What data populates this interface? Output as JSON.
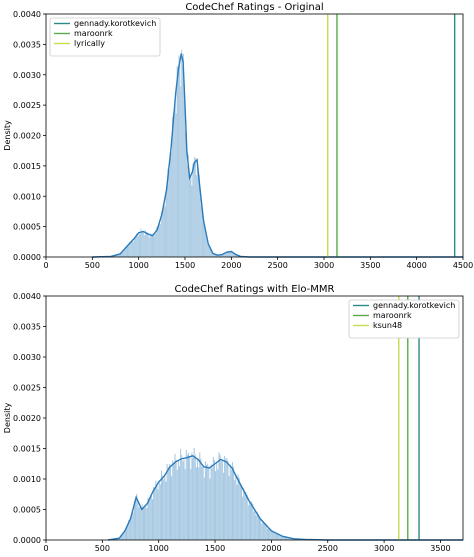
{
  "chart_data": [
    {
      "type": "area",
      "title": "CodeChef Ratings - Original",
      "xlabel": "",
      "ylabel": "Density",
      "xlim": [
        0,
        4500
      ],
      "ylim": [
        0,
        0.004
      ],
      "xticks": [
        0,
        500,
        1000,
        1500,
        2000,
        2500,
        3000,
        3500,
        4000,
        4500
      ],
      "yticks": [
        0.0,
        0.0005,
        0.001,
        0.0015,
        0.002,
        0.0025,
        0.003,
        0.0035,
        0.004
      ],
      "ytick_labels": [
        "0.0000",
        "0.0005",
        "0.0010",
        "0.0015",
        "0.0020",
        "0.0025",
        "0.0030",
        "0.0035",
        "0.0040"
      ],
      "legend_position": "top-left",
      "colors": {
        "hist": "#a6c8e2",
        "kde": "#2b7bba"
      },
      "density_curve": {
        "x": [
          500,
          700,
          800,
          900,
          950,
          1000,
          1050,
          1100,
          1150,
          1200,
          1250,
          1300,
          1350,
          1400,
          1430,
          1460,
          1480,
          1500,
          1520,
          1550,
          1580,
          1600,
          1630,
          1660,
          1700,
          1750,
          1800,
          1850,
          1900,
          1950,
          2000,
          2050,
          2100,
          2200,
          2400,
          2600,
          3000,
          3500,
          4000,
          4500
        ],
        "y": [
          0,
          1e-05,
          5e-05,
          0.00022,
          0.0003,
          0.0004,
          0.00042,
          0.00038,
          0.00035,
          0.00045,
          0.0007,
          0.0011,
          0.0018,
          0.0027,
          0.0031,
          0.00335,
          0.0032,
          0.0025,
          0.00175,
          0.0013,
          0.0014,
          0.00155,
          0.0016,
          0.00115,
          0.0006,
          0.00022,
          6e-05,
          3e-05,
          4e-05,
          8e-05,
          9e-05,
          4e-05,
          1e-05,
          0,
          0,
          0,
          0,
          0,
          0,
          0
        ]
      },
      "series": [
        {
          "name": "gennady.korotkevich",
          "x": 4410,
          "color": "#2a8a8a"
        },
        {
          "name": "maroonrk",
          "x": 3140,
          "color": "#5aaa4a"
        },
        {
          "name": "lyrically",
          "x": 3040,
          "color": "#c8dc50"
        }
      ]
    },
    {
      "type": "area",
      "title": "CodeChef Ratings with Elo-MMR",
      "xlabel": "",
      "ylabel": "Density",
      "xlim": [
        0,
        3700
      ],
      "ylim": [
        0,
        0.004
      ],
      "xticks": [
        0,
        500,
        1000,
        1500,
        2000,
        2500,
        3000,
        3500
      ],
      "yticks": [
        0.0,
        0.0005,
        0.001,
        0.0015,
        0.002,
        0.0025,
        0.003,
        0.0035,
        0.004
      ],
      "ytick_labels": [
        "0.0000",
        "0.0005",
        "0.0010",
        "0.0015",
        "0.0020",
        "0.0025",
        "0.0030",
        "0.0035",
        "0.0040"
      ],
      "legend_position": "top-right",
      "colors": {
        "hist": "#a6c8e2",
        "kde": "#2b7bba"
      },
      "density_curve": {
        "x": [
          550,
          650,
          700,
          750,
          800,
          850,
          900,
          950,
          1000,
          1050,
          1100,
          1150,
          1200,
          1250,
          1300,
          1350,
          1400,
          1450,
          1500,
          1550,
          1600,
          1650,
          1700,
          1800,
          1900,
          2000,
          2100,
          2200,
          2300,
          2500,
          3000,
          3700
        ],
        "y": [
          0,
          3e-05,
          0.00015,
          0.00035,
          0.0007,
          0.0005,
          0.0006,
          0.0008,
          0.00095,
          0.00105,
          0.0012,
          0.00128,
          0.00133,
          0.00135,
          0.00138,
          0.00132,
          0.0012,
          0.00118,
          0.00125,
          0.00132,
          0.00128,
          0.00118,
          0.001,
          0.00065,
          0.00035,
          0.00015,
          6e-05,
          2e-05,
          1e-05,
          0,
          0,
          0
        ]
      },
      "series": [
        {
          "name": "gennady.korotkevich",
          "x": 3310,
          "color": "#2a8a8a"
        },
        {
          "name": "maroonrk",
          "x": 3210,
          "color": "#5aaa4a"
        },
        {
          "name": "ksun48",
          "x": 3130,
          "color": "#c8dc50"
        }
      ]
    }
  ]
}
